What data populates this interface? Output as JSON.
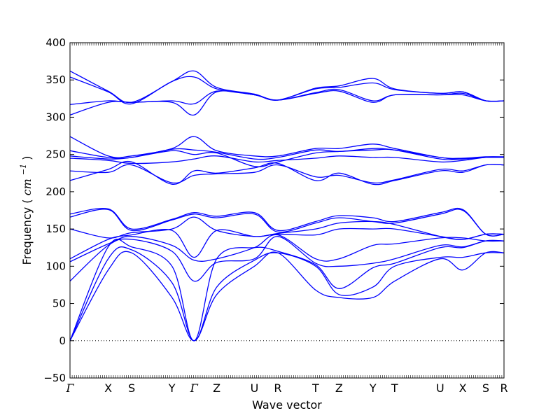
{
  "chart_data": {
    "type": "line",
    "title": "",
    "xlabel": "Wave vector",
    "ylabel": "Frequency",
    "ylabel_unit": "cm",
    "ylabel_unit_exp": "−1",
    "ylim": [
      -50,
      400
    ],
    "yticks": [
      -50,
      0,
      50,
      100,
      150,
      200,
      250,
      300,
      350,
      400
    ],
    "xlim": [
      0,
      100
    ],
    "xticks": [
      {
        "label": "Γ",
        "x": 0
      },
      {
        "label": "X",
        "x": 8.8
      },
      {
        "label": "S",
        "x": 14.2
      },
      {
        "label": "Y",
        "x": 23.5
      },
      {
        "label": "Γ",
        "x": 28.6
      },
      {
        "label": "Z",
        "x": 33.8
      },
      {
        "label": "U",
        "x": 42.5
      },
      {
        "label": "R",
        "x": 47.9
      },
      {
        "label": "T",
        "x": 56.6
      },
      {
        "label": "Z",
        "x": 62.0
      },
      {
        "label": "Y",
        "x": 69.8
      },
      {
        "label": "T",
        "x": 74.8
      },
      {
        "label": "U",
        "x": 85.3
      },
      {
        "label": "X",
        "x": 90.5
      },
      {
        "label": "S",
        "x": 95.8
      },
      {
        "label": "R",
        "x": 100
      }
    ],
    "line_color": "#0000ff",
    "zero_line": true,
    "grid": false,
    "series": [
      {
        "x": [
          0,
          8.8,
          14.2,
          23.5,
          28.6,
          33.8,
          42.5,
          47.9,
          56.6,
          62,
          69.8,
          74.8,
          85.3,
          90.5,
          95.8,
          100
        ],
        "y": [
          0,
          95,
          118,
          58,
          0,
          62,
          100,
          118,
          68,
          58,
          58,
          80,
          110,
          95,
          118,
          118
        ]
      },
      {
        "x": [
          0,
          8.8,
          14.2,
          23.5,
          28.6,
          33.8,
          42.5,
          47.9,
          56.6,
          62,
          69.8,
          74.8,
          85.3,
          90.5,
          95.8,
          100
        ],
        "y": [
          0,
          110,
          122,
          78,
          0,
          72,
          108,
          118,
          100,
          62,
          72,
          100,
          112,
          112,
          118,
          118
        ]
      },
      {
        "x": [
          0,
          8.8,
          14.2,
          23.5,
          28.6,
          33.8,
          42.5,
          47.9,
          56.6,
          62,
          69.8,
          74.8,
          85.3,
          90.5,
          95.8,
          100
        ],
        "y": [
          0,
          126,
          126,
          100,
          0,
          110,
          125,
          120,
          102,
          70,
          98,
          104,
          125,
          125,
          134,
          134
        ]
      },
      {
        "x": [
          0,
          8.8,
          14.2,
          23.5,
          28.6,
          33.8,
          42.5,
          47.9,
          56.6,
          62,
          69.8,
          74.8,
          85.3,
          90.5,
          95.8,
          100
        ],
        "y": [
          80,
          128,
          136,
          120,
          80,
          105,
          110,
          140,
          104,
          100,
          104,
          110,
          128,
          126,
          134,
          134
        ]
      },
      {
        "x": [
          0,
          8.8,
          14.2,
          23.5,
          28.6,
          33.8,
          42.5,
          47.9,
          56.6,
          62,
          69.8,
          74.8,
          85.3,
          90.5,
          95.8,
          100
        ],
        "y": [
          106,
          130,
          140,
          128,
          108,
          110,
          125,
          142,
          110,
          110,
          128,
          130,
          138,
          138,
          134,
          134
        ]
      },
      {
        "x": [
          0,
          8.8,
          14.2,
          23.5,
          28.6,
          33.8,
          42.5,
          47.9,
          56.6,
          62,
          69.8,
          74.8,
          85.3,
          90.5,
          95.8,
          100
        ],
        "y": [
          110,
          136,
          142,
          148,
          112,
          148,
          140,
          143,
          142,
          150,
          150,
          150,
          140,
          136,
          143,
          143
        ]
      },
      {
        "x": [
          0,
          8.8,
          14.2,
          23.5,
          28.6,
          33.8,
          42.5,
          47.9,
          56.6,
          62,
          69.8,
          74.8,
          85.3,
          90.5,
          95.8,
          100
        ],
        "y": [
          150,
          138,
          145,
          150,
          166,
          148,
          140,
          144,
          150,
          158,
          160,
          156,
          140,
          136,
          143,
          143
        ]
      },
      {
        "x": [
          0,
          8.8,
          14.2,
          23.5,
          28.6,
          33.8,
          42.5,
          47.9,
          56.6,
          62,
          69.8,
          74.8,
          85.3,
          90.5,
          95.8,
          100
        ],
        "y": [
          166,
          176,
          148,
          162,
          170,
          165,
          170,
          146,
          158,
          165,
          160,
          158,
          170,
          175,
          143,
          143
        ]
      },
      {
        "x": [
          0,
          8.8,
          14.2,
          23.5,
          28.6,
          33.8,
          42.5,
          47.9,
          56.6,
          62,
          69.8,
          74.8,
          85.3,
          90.5,
          95.8,
          100
        ],
        "y": [
          170,
          177,
          150,
          163,
          172,
          167,
          172,
          148,
          160,
          168,
          165,
          160,
          172,
          176,
          143,
          143
        ]
      },
      {
        "x": [
          0,
          8.8,
          14.2,
          23.5,
          28.6,
          33.8,
          42.5,
          47.9,
          56.6,
          62,
          69.8,
          74.8,
          85.3,
          90.5,
          95.8,
          100
        ],
        "y": [
          215,
          230,
          240,
          210,
          228,
          225,
          232,
          238,
          215,
          225,
          210,
          215,
          228,
          226,
          236,
          236
        ]
      },
      {
        "x": [
          0,
          8.8,
          14.2,
          23.5,
          28.6,
          33.8,
          42.5,
          47.9,
          56.6,
          62,
          69.8,
          74.8,
          85.3,
          90.5,
          95.8,
          100
        ],
        "y": [
          228,
          226,
          236,
          212,
          222,
          224,
          226,
          236,
          220,
          222,
          212,
          216,
          230,
          228,
          236,
          236
        ]
      },
      {
        "x": [
          0,
          8.8,
          14.2,
          23.5,
          28.6,
          33.8,
          42.5,
          47.9,
          56.6,
          62,
          69.8,
          74.8,
          85.3,
          90.5,
          95.8,
          100
        ],
        "y": [
          245,
          242,
          238,
          240,
          244,
          248,
          240,
          242,
          245,
          248,
          246,
          246,
          240,
          242,
          246,
          246
        ]
      },
      {
        "x": [
          0,
          8.8,
          14.2,
          23.5,
          28.6,
          33.8,
          42.5,
          47.9,
          56.6,
          62,
          69.8,
          74.8,
          85.3,
          90.5,
          95.8,
          100
        ],
        "y": [
          248,
          244,
          246,
          255,
          250,
          252,
          234,
          240,
          252,
          254,
          256,
          256,
          244,
          244,
          246,
          246
        ]
      },
      {
        "x": [
          0,
          8.8,
          14.2,
          23.5,
          28.6,
          33.8,
          42.5,
          47.9,
          56.6,
          62,
          69.8,
          74.8,
          85.3,
          90.5,
          95.8,
          100
        ],
        "y": [
          255,
          246,
          246,
          257,
          256,
          253,
          244,
          246,
          256,
          254,
          258,
          256,
          246,
          244,
          246,
          246
        ]
      },
      {
        "x": [
          0,
          8.8,
          14.2,
          23.5,
          28.6,
          33.8,
          42.5,
          47.9,
          56.6,
          62,
          69.8,
          74.8,
          85.3,
          90.5,
          95.8,
          100
        ],
        "y": [
          274,
          248,
          248,
          258,
          274,
          255,
          248,
          248,
          258,
          258,
          264,
          258,
          246,
          245,
          247,
          247
        ]
      },
      {
        "x": [
          0,
          8.8,
          14.2,
          23.5,
          28.6,
          33.8,
          42.5,
          47.9,
          56.6,
          62,
          69.8,
          74.8,
          85.3,
          90.5,
          95.8,
          100
        ],
        "y": [
          303,
          320,
          320,
          320,
          303,
          334,
          330,
          323,
          332,
          335,
          320,
          330,
          330,
          330,
          322,
          322
        ]
      },
      {
        "x": [
          0,
          8.8,
          14.2,
          23.5,
          28.6,
          33.8,
          42.5,
          47.9,
          56.6,
          62,
          69.8,
          74.8,
          85.3,
          90.5,
          95.8,
          100
        ],
        "y": [
          317,
          322,
          320,
          322,
          318,
          335,
          330,
          323,
          333,
          337,
          322,
          330,
          330,
          332,
          322,
          322
        ]
      },
      {
        "x": [
          0,
          8.8,
          14.2,
          23.5,
          28.6,
          33.8,
          42.5,
          47.9,
          56.6,
          62,
          69.8,
          74.8,
          85.3,
          90.5,
          95.8,
          100
        ],
        "y": [
          354,
          334,
          318,
          348,
          354,
          338,
          330,
          323,
          338,
          340,
          346,
          337,
          332,
          334,
          322,
          322
        ]
      },
      {
        "x": [
          0,
          8.8,
          14.2,
          23.5,
          28.6,
          33.8,
          42.5,
          47.9,
          56.6,
          62,
          69.8,
          74.8,
          85.3,
          90.5,
          95.8,
          100
        ],
        "y": [
          362,
          335,
          320,
          348,
          362,
          340,
          331,
          323,
          339,
          342,
          352,
          338,
          332,
          334,
          322,
          322
        ]
      }
    ]
  }
}
